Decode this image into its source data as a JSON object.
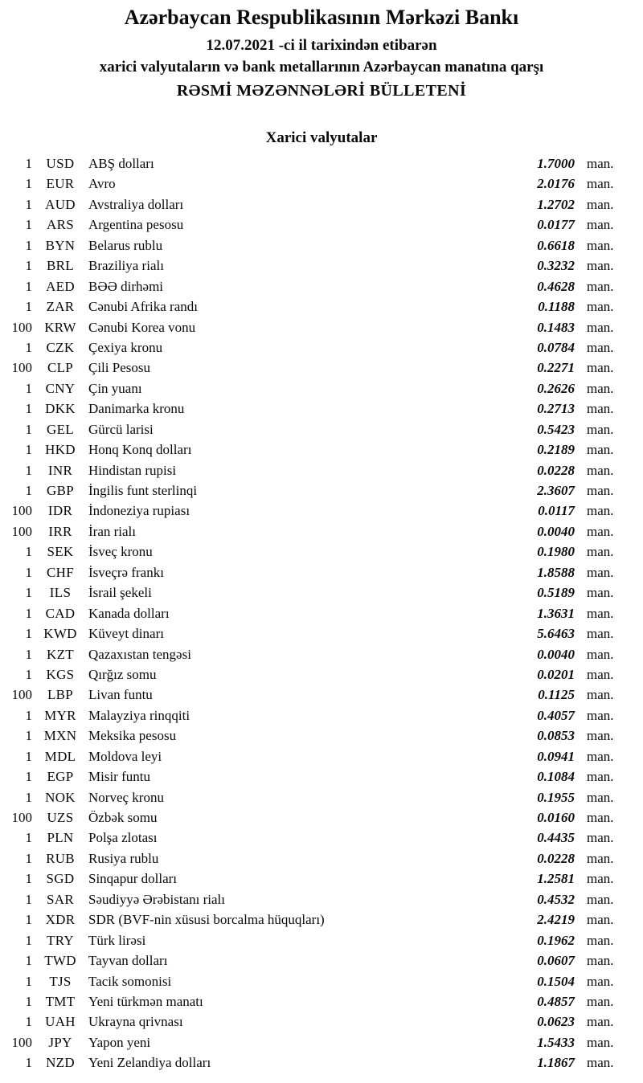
{
  "header": {
    "bank_title": "Azərbaycan Respublikasının Mərkəzi Bankı",
    "date_line": "12.07.2021 -ci il tarixindən etibarən",
    "subtitle": "xarici valyutaların və bank metallarının Azərbaycan manatına qarşı",
    "bulletin_title": "RƏSMİ MƏZƏNNƏLƏRİ BÜLLETENİ"
  },
  "section": {
    "title": "Xarici valyutalar"
  },
  "unit_label": "man.",
  "rates": [
    {
      "qty": "1",
      "code": "USD",
      "name": "ABŞ dolları",
      "rate": "1.7000"
    },
    {
      "qty": "1",
      "code": "EUR",
      "name": "Avro",
      "rate": "2.0176"
    },
    {
      "qty": "1",
      "code": "AUD",
      "name": "Avstraliya dolları",
      "rate": "1.2702"
    },
    {
      "qty": "1",
      "code": "ARS",
      "name": "Argentina pesosu",
      "rate": "0.0177"
    },
    {
      "qty": "1",
      "code": "BYN",
      "name": "Belarus rublu",
      "rate": "0.6618"
    },
    {
      "qty": "1",
      "code": "BRL",
      "name": "Braziliya rialı",
      "rate": "0.3232"
    },
    {
      "qty": "1",
      "code": "AED",
      "name": "BƏƏ dirhəmi",
      "rate": "0.4628"
    },
    {
      "qty": "1",
      "code": "ZAR",
      "name": "Cənubi Afrika randı",
      "rate": "0.1188"
    },
    {
      "qty": "100",
      "code": "KRW",
      "name": "Cənubi Korea vonu",
      "rate": "0.1483"
    },
    {
      "qty": "1",
      "code": "CZK",
      "name": "Çexiya kronu",
      "rate": "0.0784"
    },
    {
      "qty": "100",
      "code": "CLP",
      "name": "Çili Pesosu",
      "rate": "0.2271"
    },
    {
      "qty": "1",
      "code": "CNY",
      "name": "Çin yuanı",
      "rate": "0.2626"
    },
    {
      "qty": "1",
      "code": "DKK",
      "name": "Danimarka kronu",
      "rate": "0.2713"
    },
    {
      "qty": "1",
      "code": "GEL",
      "name": "Gürcü larisi",
      "rate": "0.5423"
    },
    {
      "qty": "1",
      "code": "HKD",
      "name": "Honq Konq dolları",
      "rate": "0.2189"
    },
    {
      "qty": "1",
      "code": "INR",
      "name": "Hindistan rupisi",
      "rate": "0.0228"
    },
    {
      "qty": "1",
      "code": "GBP",
      "name": "İngilis funt sterlinqi",
      "rate": "2.3607"
    },
    {
      "qty": "100",
      "code": "IDR",
      "name": "İndoneziya rupiası",
      "rate": "0.0117"
    },
    {
      "qty": "100",
      "code": "IRR",
      "name": "İran rialı",
      "rate": "0.0040"
    },
    {
      "qty": "1",
      "code": "SEK",
      "name": "İsveç kronu",
      "rate": "0.1980"
    },
    {
      "qty": "1",
      "code": "CHF",
      "name": "İsveçrə frankı",
      "rate": "1.8588"
    },
    {
      "qty": "1",
      "code": "ILS",
      "name": "İsrail şekeli",
      "rate": "0.5189"
    },
    {
      "qty": "1",
      "code": "CAD",
      "name": "Kanada dolları",
      "rate": "1.3631"
    },
    {
      "qty": "1",
      "code": "KWD",
      "name": "Küveyt dinarı",
      "rate": "5.6463"
    },
    {
      "qty": "1",
      "code": "KZT",
      "name": "Qazaxıstan tengəsi",
      "rate": "0.0040"
    },
    {
      "qty": "1",
      "code": "KGS",
      "name": "Qırğız somu",
      "rate": "0.0201"
    },
    {
      "qty": "100",
      "code": "LBP",
      "name": "Livan funtu",
      "rate": "0.1125"
    },
    {
      "qty": "1",
      "code": "MYR",
      "name": "Malayziya rinqqiti",
      "rate": "0.4057"
    },
    {
      "qty": "1",
      "code": "MXN",
      "name": "Meksika pesosu",
      "rate": "0.0853"
    },
    {
      "qty": "1",
      "code": "MDL",
      "name": "Moldova leyi",
      "rate": "0.0941"
    },
    {
      "qty": "1",
      "code": "EGP",
      "name": "Misir funtu",
      "rate": "0.1084"
    },
    {
      "qty": "1",
      "code": "NOK",
      "name": "Norveç kronu",
      "rate": "0.1955"
    },
    {
      "qty": "100",
      "code": "UZS",
      "name": "Özbək somu",
      "rate": "0.0160"
    },
    {
      "qty": "1",
      "code": "PLN",
      "name": "Polşa zlotası",
      "rate": "0.4435"
    },
    {
      "qty": "1",
      "code": "RUB",
      "name": "Rusiya rublu",
      "rate": "0.0228"
    },
    {
      "qty": "1",
      "code": "SGD",
      "name": "Sinqapur dolları",
      "rate": "1.2581"
    },
    {
      "qty": "1",
      "code": "SAR",
      "name": "Səudiyyə Ərəbistanı rialı",
      "rate": "0.4532"
    },
    {
      "qty": "1",
      "code": "XDR",
      "name": "SDR (BVF-nin xüsusi borcalma hüquqları)",
      "rate": "2.4219"
    },
    {
      "qty": "1",
      "code": "TRY",
      "name": "Türk lirəsi",
      "rate": "0.1962"
    },
    {
      "qty": "1",
      "code": "TWD",
      "name": "Tayvan dolları",
      "rate": "0.0607"
    },
    {
      "qty": "1",
      "code": "TJS",
      "name": "Tacik somonisi",
      "rate": "0.1504"
    },
    {
      "qty": "1",
      "code": "TMT",
      "name": "Yeni türkmən manatı",
      "rate": "0.4857"
    },
    {
      "qty": "1",
      "code": "UAH",
      "name": "Ukrayna qrivnası",
      "rate": "0.0623"
    },
    {
      "qty": "100",
      "code": "JPY",
      "name": "Yapon yeni",
      "rate": "1.5433"
    },
    {
      "qty": "1",
      "code": "NZD",
      "name": "Yeni Zelandiya dolları",
      "rate": "1.1867"
    }
  ]
}
